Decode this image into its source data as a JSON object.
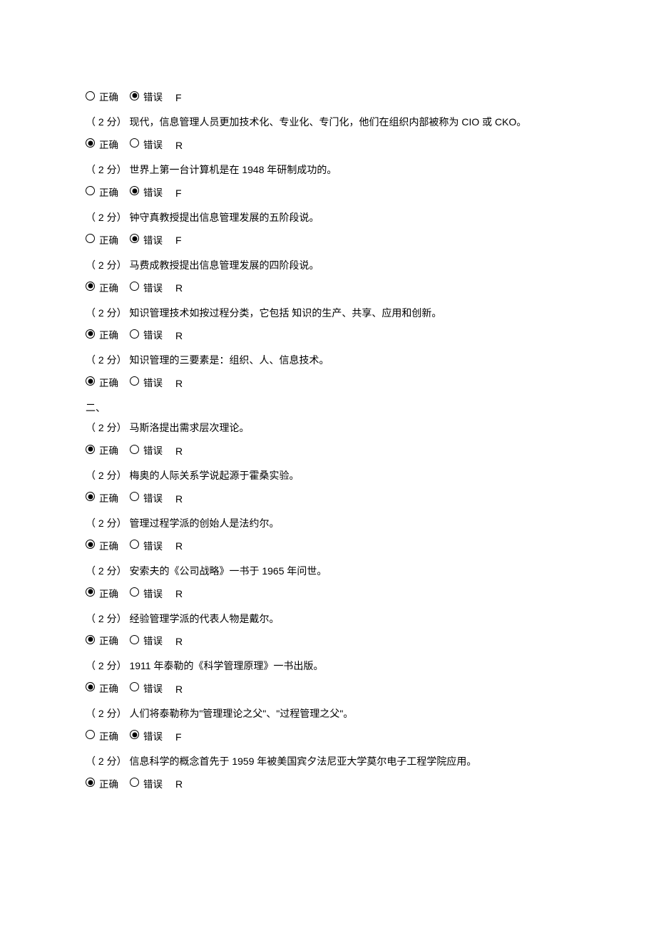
{
  "labels": {
    "correct": "正确",
    "wrong": "错误",
    "section2": "二、"
  },
  "questions": [
    {
      "selected": "wrong",
      "key": "F",
      "text": "（ 2 分）  现代，信息管理人员更加技术化、专业化、专门化，他们在组织内部被称为 CIO 或 CKO。"
    },
    {
      "selected": "correct",
      "key": "R",
      "text": "（ 2 分）  世界上第一台计算机是在 1948 年研制成功的。"
    },
    {
      "selected": "wrong",
      "key": "F",
      "text": "（ 2 分）  钟守真教授提出信息管理发展的五阶段说。"
    },
    {
      "selected": "wrong",
      "key": "F",
      "text": "（ 2 分）  马费成教授提出信息管理发展的四阶段说。"
    },
    {
      "selected": "correct",
      "key": "R",
      "text": "（ 2 分）  知识管理技术如按过程分类，它包括 知识的生产、共享、应用和创新。"
    },
    {
      "selected": "correct",
      "key": "R",
      "text": "（ 2 分）  知识管理的三要素是：组织、人、信息技术。"
    },
    {
      "selected": "correct",
      "key": "R",
      "section_before": true,
      "text": "（ 2 分）  马斯洛提出需求层次理论。"
    },
    {
      "selected": "correct",
      "key": "R",
      "text": "（ 2 分）  梅奥的人际关系学说起源于霍桑实验。"
    },
    {
      "selected": "correct",
      "key": "R",
      "text": "（ 2 分）  管理过程学派的创始人是法约尔。"
    },
    {
      "selected": "correct",
      "key": "R",
      "text": "（ 2 分）  安索夫的《公司战略》一书于 1965 年问世。"
    },
    {
      "selected": "correct",
      "key": "R",
      "text": "（ 2 分）  经验管理学派的代表人物是戴尔。"
    },
    {
      "selected": "correct",
      "key": "R",
      "text": "（ 2 分）  1911 年泰勒的《科学管理原理》一书出版。"
    },
    {
      "selected": "correct",
      "key": "R",
      "text": "（ 2 分）  人们将泰勒称为\"管理理论之父\"、\"过程管理之父\"。"
    },
    {
      "selected": "wrong",
      "key": "F",
      "text": "（ 2 分）  信息科学的概念首先于 1959 年被美国宾夕法尼亚大学莫尔电子工程学院应用。"
    },
    {
      "selected": "correct",
      "key": "R",
      "text": ""
    }
  ]
}
